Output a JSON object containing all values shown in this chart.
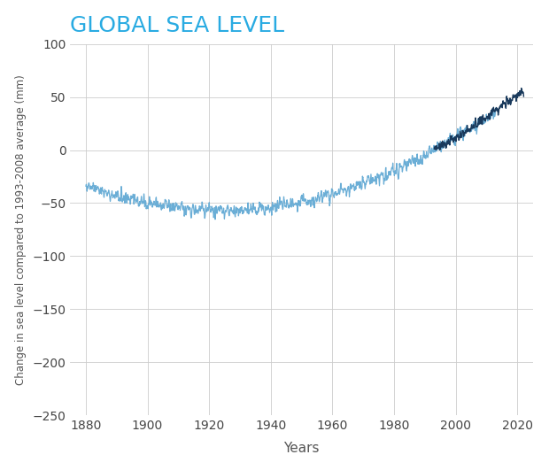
{
  "title": "GLOBAL SEA LEVEL",
  "title_color": "#29ABE2",
  "xlabel": "Years",
  "ylabel": "Change in sea level compared to 1993-2008 average (mm)",
  "xlim": [
    1875,
    2025
  ],
  "ylim": [
    -250,
    100
  ],
  "xticks": [
    1880,
    1900,
    1920,
    1940,
    1960,
    1980,
    2000,
    2020
  ],
  "yticks": [
    -250,
    -200,
    -150,
    -100,
    -50,
    0,
    50,
    100
  ],
  "tide_color": "#6BAED6",
  "satellite_color": "#1A3A5C",
  "background_color": "#ffffff",
  "grid_color": "#cccccc",
  "tide_start_year": 1880,
  "tide_end_year": 2013,
  "satellite_start_year": 1993,
  "satellite_end_year": 2022,
  "tide_noise_sigma": 5,
  "satellite_noise_sigma": 4
}
